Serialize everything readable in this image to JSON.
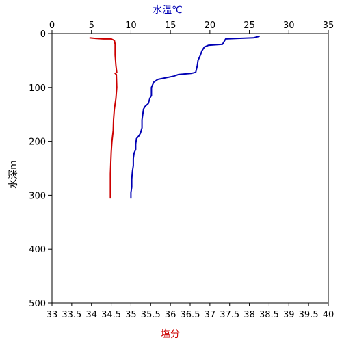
{
  "chart_data": {
    "type": "line",
    "colors": {
      "salinity": "#cc0000",
      "temperature": "#0000b4",
      "axis": "#000000"
    },
    "axes": {
      "y": {
        "label": "水深m",
        "range": [
          0,
          500
        ],
        "inverted": true,
        "ticks": [
          0,
          100,
          200,
          300,
          400,
          500
        ]
      },
      "x_top": {
        "label": "水温℃",
        "range": [
          0,
          35
        ],
        "ticks": [
          0,
          5,
          10,
          15,
          20,
          25,
          30,
          35
        ]
      },
      "x_bottom": {
        "label": "塩分",
        "range": [
          33,
          40
        ],
        "ticks": [
          33,
          33.5,
          34,
          34.5,
          35,
          35.5,
          36,
          36.5,
          37,
          37.5,
          38,
          38.5,
          39,
          39.5,
          40
        ]
      }
    },
    "series": [
      {
        "variable": "salinity",
        "axis": "x_bottom",
        "points": [
          [
            33.95,
            8
          ],
          [
            34.1,
            9
          ],
          [
            34.3,
            10
          ],
          [
            34.5,
            10
          ],
          [
            34.58,
            13
          ],
          [
            34.6,
            20
          ],
          [
            34.6,
            40
          ],
          [
            34.62,
            60
          ],
          [
            34.64,
            72
          ],
          [
            34.6,
            74
          ],
          [
            34.63,
            76
          ],
          [
            34.64,
            100
          ],
          [
            34.62,
            120
          ],
          [
            34.58,
            140
          ],
          [
            34.56,
            160
          ],
          [
            34.55,
            180
          ],
          [
            34.52,
            200
          ],
          [
            34.5,
            220
          ],
          [
            34.49,
            240
          ],
          [
            34.48,
            260
          ],
          [
            34.48,
            280
          ],
          [
            34.48,
            306
          ]
        ]
      },
      {
        "variable": "temperature",
        "axis": "x_top",
        "points": [
          [
            26.3,
            5
          ],
          [
            25.5,
            8
          ],
          [
            23.5,
            9
          ],
          [
            22.0,
            10
          ],
          [
            21.6,
            20
          ],
          [
            19.8,
            22
          ],
          [
            19.3,
            25
          ],
          [
            19.0,
            32
          ],
          [
            18.8,
            40
          ],
          [
            18.5,
            50
          ],
          [
            18.4,
            60
          ],
          [
            18.2,
            72
          ],
          [
            17.6,
            74
          ],
          [
            16.0,
            76
          ],
          [
            15.4,
            79
          ],
          [
            13.4,
            85
          ],
          [
            12.9,
            90
          ],
          [
            12.6,
            100
          ],
          [
            12.6,
            115
          ],
          [
            12.4,
            120
          ],
          [
            12.2,
            130
          ],
          [
            11.8,
            135
          ],
          [
            11.6,
            140
          ],
          [
            11.5,
            150
          ],
          [
            11.4,
            160
          ],
          [
            11.4,
            175
          ],
          [
            11.2,
            185
          ],
          [
            11.0,
            190
          ],
          [
            10.7,
            195
          ],
          [
            10.6,
            205
          ],
          [
            10.6,
            215
          ],
          [
            10.4,
            222
          ],
          [
            10.3,
            232
          ],
          [
            10.3,
            245
          ],
          [
            10.2,
            255
          ],
          [
            10.1,
            270
          ],
          [
            10.1,
            285
          ],
          [
            10.0,
            295
          ],
          [
            10.0,
            306
          ]
        ]
      }
    ]
  }
}
